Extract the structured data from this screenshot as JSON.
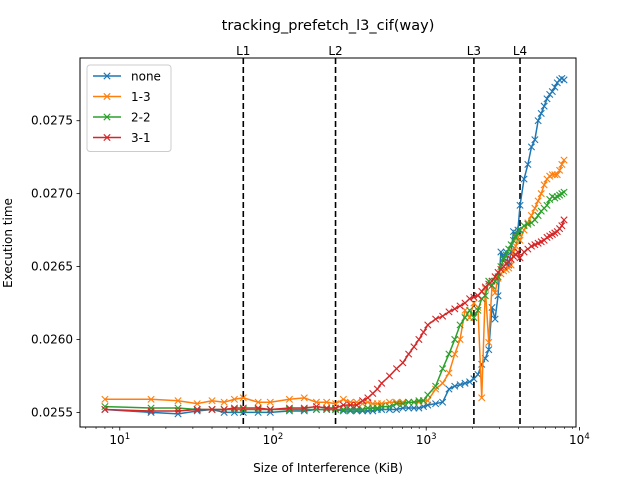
{
  "chart_data": {
    "type": "line",
    "title": "tracking_prefetch_l3_cif(way)",
    "xlabel": "Size of Interference (KiB)",
    "ylabel": "Execution time",
    "xscale": "log",
    "xlim": [
      5.5,
      9500
    ],
    "ylim": [
      0.0254,
      0.02793
    ],
    "x_ticks": [
      {
        "value": 10,
        "base": "10",
        "exp": "1"
      },
      {
        "value": 100,
        "base": "10",
        "exp": "2"
      },
      {
        "value": 1000,
        "base": "10",
        "exp": "3"
      },
      {
        "value": 10000,
        "base": "10",
        "exp": "4"
      }
    ],
    "y_ticks": [
      {
        "value": 0.0255,
        "label": "0.0255"
      },
      {
        "value": 0.026,
        "label": "0.0260"
      },
      {
        "value": 0.0265,
        "label": "0.0265"
      },
      {
        "value": 0.027,
        "label": "0.0270"
      },
      {
        "value": 0.0275,
        "label": "0.0275"
      }
    ],
    "legend_position": "upper-left",
    "grid": false,
    "cache_lines": [
      {
        "label": "L1",
        "x": 64
      },
      {
        "label": "L2",
        "x": 256
      },
      {
        "label": "L3",
        "x": 2048
      },
      {
        "label": "L4",
        "x": 4096
      }
    ],
    "series": [
      {
        "name": "none",
        "color": "#1f77b4",
        "points": [
          [
            8,
            0.02552
          ],
          [
            16,
            0.0255
          ],
          [
            24,
            0.02549
          ],
          [
            32,
            0.02551
          ],
          [
            40,
            0.02552
          ],
          [
            48,
            0.0255
          ],
          [
            56,
            0.0255
          ],
          [
            64,
            0.0255
          ],
          [
            80,
            0.0255
          ],
          [
            96,
            0.0255
          ],
          [
            128,
            0.02551
          ],
          [
            160,
            0.02551
          ],
          [
            192,
            0.02552
          ],
          [
            224,
            0.02552
          ],
          [
            256,
            0.02552
          ],
          [
            288,
            0.02551
          ],
          [
            320,
            0.02551
          ],
          [
            352,
            0.02551
          ],
          [
            384,
            0.02551
          ],
          [
            416,
            0.02551
          ],
          [
            448,
            0.02551
          ],
          [
            480,
            0.02552
          ],
          [
            512,
            0.02552
          ],
          [
            576,
            0.02552
          ],
          [
            640,
            0.02552
          ],
          [
            704,
            0.02553
          ],
          [
            768,
            0.02553
          ],
          [
            832,
            0.02553
          ],
          [
            896,
            0.02553
          ],
          [
            960,
            0.02554
          ],
          [
            1024,
            0.02555
          ],
          [
            1152,
            0.02556
          ],
          [
            1280,
            0.02557
          ],
          [
            1408,
            0.02566
          ],
          [
            1536,
            0.02568
          ],
          [
            1664,
            0.02569
          ],
          [
            1792,
            0.0257
          ],
          [
            1920,
            0.02571
          ],
          [
            2048,
            0.02573
          ],
          [
            2176,
            0.02576
          ],
          [
            2304,
            0.02583
          ],
          [
            2432,
            0.02587
          ],
          [
            2560,
            0.02593
          ],
          [
            2688,
            0.02622
          ],
          [
            2816,
            0.02614
          ],
          [
            2944,
            0.0263
          ],
          [
            3072,
            0.0266
          ],
          [
            3200,
            0.02656
          ],
          [
            3328,
            0.0266
          ],
          [
            3456,
            0.02651
          ],
          [
            3584,
            0.0266
          ],
          [
            3712,
            0.02674
          ],
          [
            3840,
            0.02671
          ],
          [
            3968,
            0.02675
          ],
          [
            4096,
            0.02692
          ],
          [
            4352,
            0.0271
          ],
          [
            4608,
            0.0272
          ],
          [
            4864,
            0.02732
          ],
          [
            5120,
            0.02737
          ],
          [
            5376,
            0.0275
          ],
          [
            5632,
            0.02755
          ],
          [
            5888,
            0.0276
          ],
          [
            6144,
            0.02765
          ],
          [
            6400,
            0.02768
          ],
          [
            6656,
            0.0277
          ],
          [
            6912,
            0.02773
          ],
          [
            7168,
            0.02776
          ],
          [
            7424,
            0.02778
          ],
          [
            7680,
            0.02779
          ],
          [
            7936,
            0.02778
          ]
        ]
      },
      {
        "name": "1-3",
        "color": "#ff7f0e",
        "points": [
          [
            8,
            0.02559
          ],
          [
            16,
            0.02559
          ],
          [
            24,
            0.02558
          ],
          [
            32,
            0.02556
          ],
          [
            40,
            0.02558
          ],
          [
            48,
            0.02557
          ],
          [
            56,
            0.02559
          ],
          [
            64,
            0.0256
          ],
          [
            80,
            0.02557
          ],
          [
            96,
            0.02557
          ],
          [
            128,
            0.02559
          ],
          [
            160,
            0.0256
          ],
          [
            192,
            0.02557
          ],
          [
            224,
            0.02557
          ],
          [
            256,
            0.02556
          ],
          [
            288,
            0.02559
          ],
          [
            320,
            0.02557
          ],
          [
            352,
            0.02557
          ],
          [
            384,
            0.02556
          ],
          [
            416,
            0.02557
          ],
          [
            448,
            0.02556
          ],
          [
            480,
            0.02556
          ],
          [
            512,
            0.02556
          ],
          [
            576,
            0.02557
          ],
          [
            640,
            0.02557
          ],
          [
            704,
            0.02557
          ],
          [
            768,
            0.02557
          ],
          [
            832,
            0.02557
          ],
          [
            896,
            0.02557
          ],
          [
            960,
            0.02558
          ],
          [
            1024,
            0.02558
          ],
          [
            1152,
            0.02566
          ],
          [
            1280,
            0.0257
          ],
          [
            1408,
            0.02577
          ],
          [
            1536,
            0.0259
          ],
          [
            1664,
            0.026
          ],
          [
            1792,
            0.0262
          ],
          [
            1920,
            0.02615
          ],
          [
            2048,
            0.02625
          ],
          [
            2176,
            0.02622
          ],
          [
            2304,
            0.0256
          ],
          [
            2432,
            0.02635
          ],
          [
            2560,
            0.02598
          ],
          [
            2688,
            0.02637
          ],
          [
            2816,
            0.02632
          ],
          [
            2944,
            0.02642
          ],
          [
            3072,
            0.02645
          ],
          [
            3200,
            0.02647
          ],
          [
            3328,
            0.02648
          ],
          [
            3456,
            0.02649
          ],
          [
            3584,
            0.02651
          ],
          [
            3712,
            0.0266
          ],
          [
            3840,
            0.02664
          ],
          [
            3968,
            0.0267
          ],
          [
            4096,
            0.02668
          ],
          [
            4352,
            0.02675
          ],
          [
            4608,
            0.0268
          ],
          [
            4864,
            0.02685
          ],
          [
            5120,
            0.0269
          ],
          [
            5376,
            0.02695
          ],
          [
            5632,
            0.027
          ],
          [
            5888,
            0.02706
          ],
          [
            6144,
            0.0271
          ],
          [
            6400,
            0.02712
          ],
          [
            6656,
            0.02713
          ],
          [
            6912,
            0.02713
          ],
          [
            7168,
            0.02713
          ],
          [
            7424,
            0.02716
          ],
          [
            7680,
            0.0272
          ],
          [
            7936,
            0.02723
          ]
        ]
      },
      {
        "name": "2-2",
        "color": "#2ca02c",
        "points": [
          [
            8,
            0.02554
          ],
          [
            16,
            0.02553
          ],
          [
            24,
            0.02553
          ],
          [
            32,
            0.02552
          ],
          [
            40,
            0.02552
          ],
          [
            48,
            0.02552
          ],
          [
            56,
            0.02552
          ],
          [
            64,
            0.02552
          ],
          [
            80,
            0.02552
          ],
          [
            96,
            0.02552
          ],
          [
            128,
            0.02552
          ],
          [
            160,
            0.02552
          ],
          [
            192,
            0.02552
          ],
          [
            224,
            0.02552
          ],
          [
            256,
            0.02552
          ],
          [
            288,
            0.02552
          ],
          [
            320,
            0.02552
          ],
          [
            352,
            0.02552
          ],
          [
            384,
            0.02552
          ],
          [
            416,
            0.02553
          ],
          [
            448,
            0.02553
          ],
          [
            480,
            0.02553
          ],
          [
            512,
            0.02554
          ],
          [
            576,
            0.02554
          ],
          [
            640,
            0.02556
          ],
          [
            704,
            0.02556
          ],
          [
            768,
            0.02557
          ],
          [
            832,
            0.02557
          ],
          [
            896,
            0.02558
          ],
          [
            960,
            0.02558
          ],
          [
            1024,
            0.02562
          ],
          [
            1152,
            0.02568
          ],
          [
            1280,
            0.0258
          ],
          [
            1408,
            0.0259
          ],
          [
            1536,
            0.026
          ],
          [
            1664,
            0.0261
          ],
          [
            1792,
            0.02615
          ],
          [
            1920,
            0.0262
          ],
          [
            2048,
            0.02615
          ],
          [
            2176,
            0.0262
          ],
          [
            2304,
            0.02628
          ],
          [
            2432,
            0.0263
          ],
          [
            2560,
            0.0264
          ],
          [
            2688,
            0.02637
          ],
          [
            2816,
            0.0264
          ],
          [
            2944,
            0.02643
          ],
          [
            3072,
            0.0265
          ],
          [
            3200,
            0.02655
          ],
          [
            3328,
            0.02658
          ],
          [
            3456,
            0.02662
          ],
          [
            3584,
            0.02665
          ],
          [
            3712,
            0.02668
          ],
          [
            3840,
            0.0267
          ],
          [
            3968,
            0.02673
          ],
          [
            4096,
            0.02675
          ],
          [
            4352,
            0.02678
          ],
          [
            4608,
            0.02679
          ],
          [
            4864,
            0.0268
          ],
          [
            5120,
            0.02682
          ],
          [
            5376,
            0.02685
          ],
          [
            5632,
            0.02688
          ],
          [
            5888,
            0.0269
          ],
          [
            6144,
            0.02692
          ],
          [
            6400,
            0.02696
          ],
          [
            6656,
            0.02698
          ],
          [
            6912,
            0.02697
          ],
          [
            7168,
            0.02698
          ],
          [
            7424,
            0.02699
          ],
          [
            7680,
            0.027
          ],
          [
            7936,
            0.02701
          ]
        ]
      },
      {
        "name": "3-1",
        "color": "#d62728",
        "points": [
          [
            8,
            0.02552
          ],
          [
            16,
            0.02551
          ],
          [
            24,
            0.02551
          ],
          [
            32,
            0.02552
          ],
          [
            40,
            0.02552
          ],
          [
            48,
            0.02552
          ],
          [
            56,
            0.02553
          ],
          [
            64,
            0.02553
          ],
          [
            80,
            0.02553
          ],
          [
            96,
            0.02552
          ],
          [
            128,
            0.02553
          ],
          [
            160,
            0.02553
          ],
          [
            192,
            0.02554
          ],
          [
            224,
            0.02553
          ],
          [
            256,
            0.02553
          ],
          [
            288,
            0.02555
          ],
          [
            320,
            0.02555
          ],
          [
            352,
            0.02555
          ],
          [
            384,
            0.02558
          ],
          [
            416,
            0.0256
          ],
          [
            448,
            0.02563
          ],
          [
            480,
            0.02566
          ],
          [
            512,
            0.0257
          ],
          [
            576,
            0.02575
          ],
          [
            640,
            0.0258
          ],
          [
            704,
            0.02584
          ],
          [
            768,
            0.0259
          ],
          [
            832,
            0.02595
          ],
          [
            896,
            0.026
          ],
          [
            960,
            0.02605
          ],
          [
            1024,
            0.0261
          ],
          [
            1152,
            0.02614
          ],
          [
            1280,
            0.02616
          ],
          [
            1408,
            0.02619
          ],
          [
            1536,
            0.02621
          ],
          [
            1664,
            0.02623
          ],
          [
            1792,
            0.02625
          ],
          [
            1920,
            0.02628
          ],
          [
            2048,
            0.02629
          ],
          [
            2176,
            0.0263
          ],
          [
            2304,
            0.02633
          ],
          [
            2432,
            0.02636
          ],
          [
            2560,
            0.02638
          ],
          [
            2688,
            0.0264
          ],
          [
            2816,
            0.02643
          ],
          [
            2944,
            0.02646
          ],
          [
            3072,
            0.02648
          ],
          [
            3200,
            0.0265
          ],
          [
            3328,
            0.02652
          ],
          [
            3456,
            0.02653
          ],
          [
            3584,
            0.02655
          ],
          [
            3712,
            0.02657
          ],
          [
            3840,
            0.02658
          ],
          [
            3968,
            0.0266
          ],
          [
            4096,
            0.02656
          ],
          [
            4352,
            0.0266
          ],
          [
            4608,
            0.02662
          ],
          [
            4864,
            0.02664
          ],
          [
            5120,
            0.02665
          ],
          [
            5376,
            0.02666
          ],
          [
            5632,
            0.02667
          ],
          [
            5888,
            0.02668
          ],
          [
            6144,
            0.0267
          ],
          [
            6400,
            0.02671
          ],
          [
            6656,
            0.02672
          ],
          [
            6912,
            0.02673
          ],
          [
            7168,
            0.02674
          ],
          [
            7424,
            0.02676
          ],
          [
            7680,
            0.02678
          ],
          [
            7936,
            0.02682
          ]
        ]
      }
    ]
  }
}
